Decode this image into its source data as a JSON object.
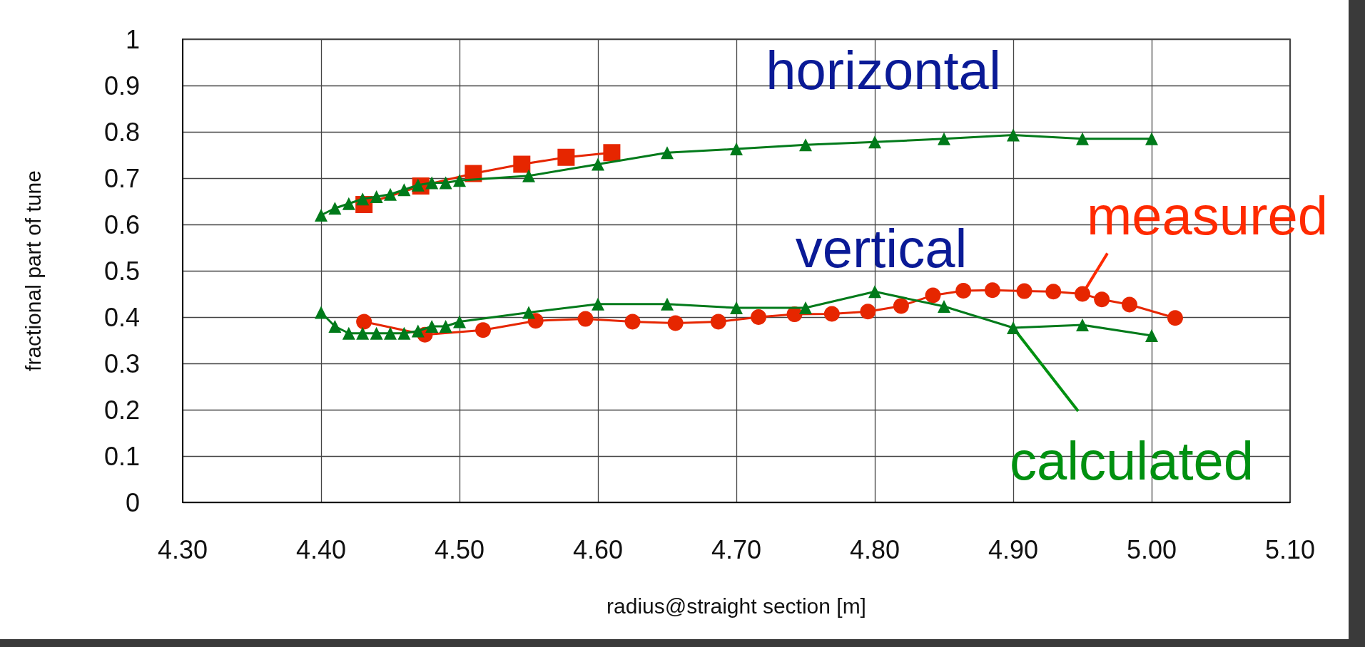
{
  "chart_data": {
    "type": "line",
    "xlabel": "radius@straight section [m]",
    "ylabel": "fractional part of tune",
    "xlim": [
      4.3,
      5.1
    ],
    "xticks": [
      {
        "value": 4.3,
        "label": "4.30"
      },
      {
        "value": 4.4,
        "label": "4.40"
      },
      {
        "value": 4.5,
        "label": "4.50"
      },
      {
        "value": 4.6,
        "label": "4.60"
      },
      {
        "value": 4.7,
        "label": "4.70"
      },
      {
        "value": 4.8,
        "label": "4.80"
      },
      {
        "value": 4.9,
        "label": "4.90"
      },
      {
        "value": 5.0,
        "label": "5.00"
      },
      {
        "value": 5.1,
        "label": "5.10"
      }
    ],
    "ylim": [
      0,
      1
    ],
    "yticks": [
      0,
      0.1,
      0.2,
      0.3,
      0.4,
      0.5,
      0.6,
      0.7,
      0.8,
      0.9,
      1
    ],
    "grid": true,
    "series": [
      {
        "color": "#007a1a",
        "marker": "triangle",
        "x": [
          4.4,
          4.41,
          4.42,
          4.43,
          4.44,
          4.45,
          4.46,
          4.47,
          4.48,
          4.49,
          4.5,
          4.55,
          4.6,
          4.65,
          4.7,
          4.75,
          4.8,
          4.85,
          4.9,
          4.95,
          5.0
        ],
        "values": [
          0.62,
          0.635,
          0.645,
          0.655,
          0.66,
          0.665,
          0.675,
          0.685,
          0.69,
          0.69,
          0.695,
          0.705,
          0.73,
          0.755,
          0.763,
          0.772,
          0.778,
          0.785,
          0.793,
          0.785,
          0.785
        ]
      },
      {
        "color": "#e62600",
        "marker": "square",
        "x": [
          4.431,
          4.472,
          4.51,
          4.545,
          4.577,
          4.61
        ],
        "values": [
          0.643,
          0.683,
          0.71,
          0.73,
          0.745,
          0.755
        ]
      },
      {
        "color": "#007a1a",
        "marker": "triangle",
        "x": [
          4.4,
          4.41,
          4.42,
          4.43,
          4.44,
          4.45,
          4.46,
          4.47,
          4.48,
          4.49,
          4.5,
          4.55,
          4.6,
          4.65,
          4.7,
          4.75,
          4.8,
          4.85,
          4.9,
          4.95,
          5.0
        ],
        "values": [
          0.41,
          0.38,
          0.365,
          0.365,
          0.365,
          0.365,
          0.365,
          0.37,
          0.38,
          0.38,
          0.39,
          0.41,
          0.428,
          0.428,
          0.42,
          0.42,
          0.455,
          0.423,
          0.377,
          0.383,
          0.36
        ]
      },
      {
        "color": "#e62600",
        "marker": "circle",
        "x": [
          4.431,
          4.475,
          4.517,
          4.555,
          4.591,
          4.625,
          4.656,
          4.687,
          4.716,
          4.742,
          4.769,
          4.795,
          4.819,
          4.842,
          4.864,
          4.885,
          4.908,
          4.929,
          4.95,
          4.964,
          4.984,
          5.017
        ],
        "values": [
          0.39,
          0.362,
          0.372,
          0.392,
          0.396,
          0.39,
          0.387,
          0.39,
          0.4,
          0.406,
          0.407,
          0.412,
          0.424,
          0.447,
          0.457,
          0.458,
          0.456,
          0.455,
          0.45,
          0.438,
          0.427,
          0.398
        ]
      }
    ],
    "annotations": [
      "horizontal",
      "vertical",
      {
        "text": "measured",
        "x": 4.95,
        "y": 0.45
      },
      {
        "text": "calculated",
        "x": 4.9,
        "y": 0.377
      }
    ]
  }
}
